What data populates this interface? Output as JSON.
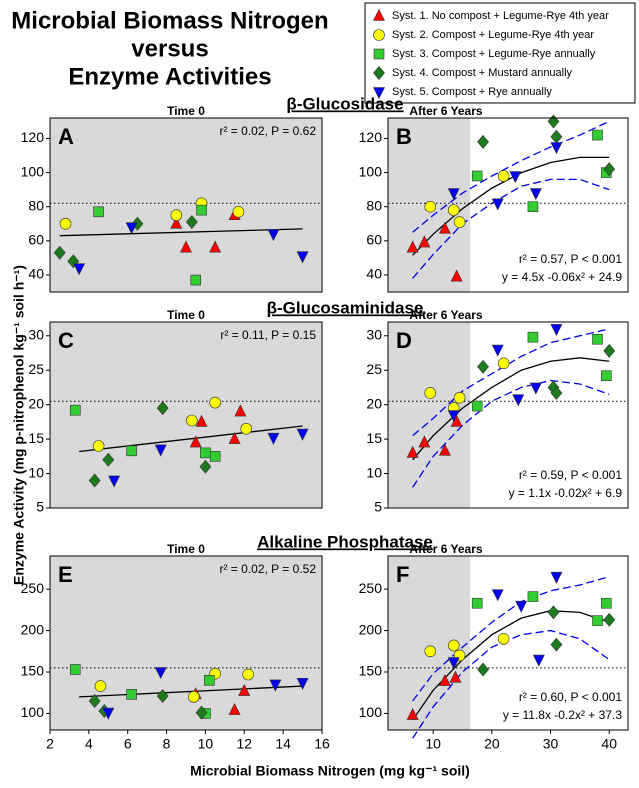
{
  "figure": {
    "title": [
      "Microbial Biomass Nitrogen",
      "versus",
      "Enzyme Activities"
    ],
    "y_label": "Enzyme Activity (mg p-nitrophenol kg⁻¹ soil h⁻¹)",
    "x_label": "Microbial Biomass Nitrogen (mg kg⁻¹ soil)"
  },
  "chart_data": [
    {
      "type": "scatter",
      "letter": "A",
      "header": "Time 0",
      "section": "β-Glucosidase",
      "stats": "r² = 0.02, P = 0.62",
      "xlim": [
        2,
        16
      ],
      "ylim": [
        30,
        132
      ],
      "yticks": [
        40,
        60,
        80,
        100,
        120
      ],
      "ref_line": 82,
      "fit": {
        "x": [
          2.5,
          15
        ],
        "y": [
          63,
          67
        ]
      },
      "series": [
        {
          "name": "Syst. 1. No compost + Legume-Rye 4th year",
          "color": "#ff0000",
          "marker": "triangle",
          "x": [
            8.5,
            9,
            10.5,
            11.5
          ],
          "values": [
            70,
            56,
            56,
            75
          ]
        },
        {
          "name": "Syst. 2. Compost + Legume-Rye 4th year",
          "color": "#ffff00",
          "marker": "circle",
          "x": [
            2.8,
            8.5,
            9.8,
            11.7
          ],
          "values": [
            70,
            75,
            82,
            77
          ]
        },
        {
          "name": "Syst. 3. Compost + Legume-Rye annually",
          "color": "#33cc33",
          "marker": "square",
          "x": [
            4.5,
            9.8,
            9.5
          ],
          "values": [
            77,
            78,
            37
          ]
        },
        {
          "name": "Syst. 4. Compost + Mustard annually",
          "color": "#1e7a1e",
          "marker": "diamond",
          "x": [
            2.5,
            3.2,
            6.5,
            9.3
          ],
          "values": [
            53,
            48,
            70,
            71
          ]
        },
        {
          "name": "Syst. 5. Compost + Rye annually",
          "color": "#0000ee",
          "marker": "triangle-down",
          "x": [
            3.5,
            6.2,
            13.5,
            15
          ],
          "values": [
            44,
            68,
            64,
            51
          ]
        }
      ]
    },
    {
      "type": "scatter",
      "letter": "B",
      "header": "After 6 Years",
      "stats": "r² = 0.57, P < 0.001",
      "equation": "y = 4.5x -0.06x² + 24.9",
      "xlim": [
        2.3,
        43.2
      ],
      "ylim": [
        30,
        132
      ],
      "yticks": [
        40,
        60,
        80,
        100,
        120
      ],
      "ref_line": 82,
      "shade_to": 16.3,
      "fit": {
        "x": [
          6.5,
          10,
          15,
          20,
          25,
          30,
          35,
          40
        ],
        "y": [
          51.6,
          63.9,
          78.9,
          90.9,
          99.9,
          105.9,
          108.9,
          108.9
        ]
      },
      "ci_upper": [
        65,
        75,
        88,
        98,
        107,
        115,
        122,
        130
      ],
      "ci_lower": [
        38,
        52,
        70,
        82,
        92,
        96,
        96,
        90
      ],
      "series": [
        {
          "color": "#ff0000",
          "marker": "triangle",
          "x": [
            6.5,
            8.5,
            12,
            14
          ],
          "values": [
            56,
            59,
            67,
            39
          ]
        },
        {
          "color": "#ffff00",
          "marker": "circle",
          "x": [
            9.5,
            13.5,
            14.5,
            22
          ],
          "values": [
            80,
            78,
            71,
            98
          ]
        },
        {
          "color": "#33cc33",
          "marker": "square",
          "x": [
            17.5,
            27,
            38,
            39.5
          ],
          "values": [
            98,
            80,
            122,
            100
          ]
        },
        {
          "color": "#1e7a1e",
          "marker": "diamond",
          "x": [
            18.5,
            30.5,
            31,
            40
          ],
          "values": [
            118,
            130,
            121,
            102
          ]
        },
        {
          "color": "#0000ee",
          "marker": "triangle-down",
          "x": [
            13.5,
            21,
            24,
            27.5,
            31
          ],
          "values": [
            88,
            82,
            98,
            88,
            115
          ]
        }
      ]
    },
    {
      "type": "scatter",
      "letter": "C",
      "header": "Time 0",
      "section": "β-Glucosaminidase",
      "stats": "r² = 0.11, P = 0.15",
      "xlim": [
        2,
        16
      ],
      "ylim": [
        5,
        32
      ],
      "yticks": [
        5,
        10,
        15,
        20,
        25,
        30
      ],
      "ref_line": 20.5,
      "fit": {
        "x": [
          3.5,
          15
        ],
        "y": [
          13.2,
          16.9
        ]
      },
      "series": [
        {
          "color": "#ff0000",
          "marker": "triangle",
          "x": [
            9.8,
            9.5,
            11.5,
            11.8
          ],
          "values": [
            17.5,
            14.5,
            15,
            19
          ]
        },
        {
          "color": "#ffff00",
          "marker": "circle",
          "x": [
            4.5,
            9.3,
            10.5,
            12.1
          ],
          "values": [
            14,
            17.7,
            20.3,
            16.5
          ]
        },
        {
          "color": "#33cc33",
          "marker": "square",
          "x": [
            3.3,
            6.2,
            10,
            10.5
          ],
          "values": [
            19.2,
            13.3,
            13,
            12.5
          ]
        },
        {
          "color": "#1e7a1e",
          "marker": "diamond",
          "x": [
            4.3,
            5,
            7.8,
            10
          ],
          "values": [
            9,
            12,
            19.5,
            11
          ]
        },
        {
          "color": "#0000ee",
          "marker": "triangle-down",
          "x": [
            5.3,
            7.7,
            13.5,
            15
          ],
          "values": [
            9,
            13.5,
            15.2,
            15.8
          ]
        }
      ]
    },
    {
      "type": "scatter",
      "letter": "D",
      "header": "After 6 Years",
      "stats": "r² = 0.59, P < 0.001",
      "equation": "y = 1.1x -0.02x² + 6.9",
      "xlim": [
        2.3,
        43.2
      ],
      "ylim": [
        5,
        32
      ],
      "yticks": [
        5,
        10,
        15,
        20,
        25,
        30
      ],
      "ref_line": 20.5,
      "shade_to": 16.3,
      "fit": {
        "x": [
          6.5,
          10,
          15,
          20,
          25,
          30,
          35,
          40
        ],
        "y": [
          12,
          15.5,
          19.5,
          22.5,
          25,
          26.3,
          26.8,
          26.3
        ]
      },
      "ci_upper": [
        15.5,
        18,
        22,
        24.5,
        27,
        29,
        30,
        31
      ],
      "ci_lower": [
        8,
        12.5,
        17,
        20.5,
        22.5,
        23.5,
        23,
        21.5
      ],
      "series": [
        {
          "color": "#ff0000",
          "marker": "triangle",
          "x": [
            6.5,
            8.5,
            12,
            14
          ],
          "values": [
            13,
            14.5,
            13.3,
            17.5
          ]
        },
        {
          "color": "#ffff00",
          "marker": "circle",
          "x": [
            9.5,
            13.5,
            14.5,
            22
          ],
          "values": [
            21.7,
            19.5,
            21,
            26
          ]
        },
        {
          "color": "#33cc33",
          "marker": "square",
          "x": [
            17.5,
            27,
            38,
            39.5
          ],
          "values": [
            19.8,
            29.8,
            29.5,
            24.2
          ]
        },
        {
          "color": "#1e7a1e",
          "marker": "diamond",
          "x": [
            18.5,
            30.5,
            31,
            40
          ],
          "values": [
            25.5,
            22.5,
            21.7,
            27.8
          ]
        },
        {
          "color": "#0000ee",
          "marker": "triangle-down",
          "x": [
            13.5,
            21,
            24.5,
            27.5,
            31
          ],
          "values": [
            18.5,
            28,
            20.8,
            22.5,
            31
          ]
        }
      ]
    },
    {
      "type": "scatter",
      "letter": "E",
      "header": "Time 0",
      "section": "Alkaline Phosphatase",
      "stats": "r² = 0.02, P = 0.52",
      "xlim": [
        2,
        16
      ],
      "ylim": [
        80,
        290
      ],
      "xticks": [
        2,
        4,
        6,
        8,
        10,
        12,
        14,
        16
      ],
      "yticks": [
        100,
        150,
        200,
        250
      ],
      "ref_line": 155,
      "fit": {
        "x": [
          3.5,
          15
        ],
        "y": [
          120,
          133
        ]
      },
      "series": [
        {
          "color": "#ff0000",
          "marker": "triangle",
          "x": [
            9.5,
            11.5,
            12
          ],
          "values": [
            123,
            104,
            127
          ]
        },
        {
          "color": "#ffff00",
          "marker": "circle",
          "x": [
            4.6,
            9.4,
            10.5,
            12.2
          ],
          "values": [
            133,
            120,
            148,
            147
          ]
        },
        {
          "color": "#33cc33",
          "marker": "square",
          "x": [
            3.3,
            6.2,
            10.2,
            10
          ],
          "values": [
            153,
            123,
            140,
            100
          ]
        },
        {
          "color": "#1e7a1e",
          "marker": "diamond",
          "x": [
            4.3,
            4.8,
            7.8,
            9.8
          ],
          "values": [
            115,
            103,
            121,
            101
          ]
        },
        {
          "color": "#0000ee",
          "marker": "triangle-down",
          "x": [
            5,
            7.7,
            13.6,
            15
          ],
          "values": [
            101,
            150,
            135,
            137
          ]
        }
      ]
    },
    {
      "type": "scatter",
      "letter": "F",
      "header": "After 6 Years",
      "stats": "r² = 0.60, P < 0.001",
      "equation": "y = 11.8x -0.2x² + 37.3",
      "xlim": [
        2.3,
        43.2
      ],
      "ylim": [
        80,
        290
      ],
      "xticks": [
        10,
        20,
        30,
        40
      ],
      "yticks": [
        100,
        150,
        200,
        250
      ],
      "ref_line": 155,
      "shade_to": 16.3,
      "fit": {
        "x": [
          6.5,
          10,
          15,
          20,
          25,
          30,
          35,
          40
        ],
        "y": [
          92,
          128,
          165,
          195,
          215,
          224,
          222,
          210
        ]
      },
      "ci_upper": [
        115,
        148,
        180,
        210,
        235,
        248,
        255,
        265
      ],
      "ci_lower": [
        70,
        108,
        150,
        180,
        195,
        200,
        190,
        165
      ],
      "series": [
        {
          "color": "#ff0000",
          "marker": "triangle",
          "x": [
            6.5,
            12,
            13.8
          ],
          "values": [
            98,
            139,
            143
          ]
        },
        {
          "color": "#ffff00",
          "marker": "circle",
          "x": [
            9.5,
            13.5,
            14.5,
            22
          ],
          "values": [
            175,
            182,
            170,
            190
          ]
        },
        {
          "color": "#33cc33",
          "marker": "square",
          "x": [
            17.5,
            27,
            38,
            39.5
          ],
          "values": [
            233,
            241,
            212,
            233
          ]
        },
        {
          "color": "#1e7a1e",
          "marker": "diamond",
          "x": [
            18.5,
            30.5,
            31,
            40
          ],
          "values": [
            153,
            222,
            183,
            213
          ]
        },
        {
          "color": "#0000ee",
          "marker": "triangle-down",
          "x": [
            13.5,
            21,
            25,
            28,
            31
          ],
          "values": [
            162,
            244,
            230,
            165,
            265
          ]
        }
      ]
    }
  ]
}
